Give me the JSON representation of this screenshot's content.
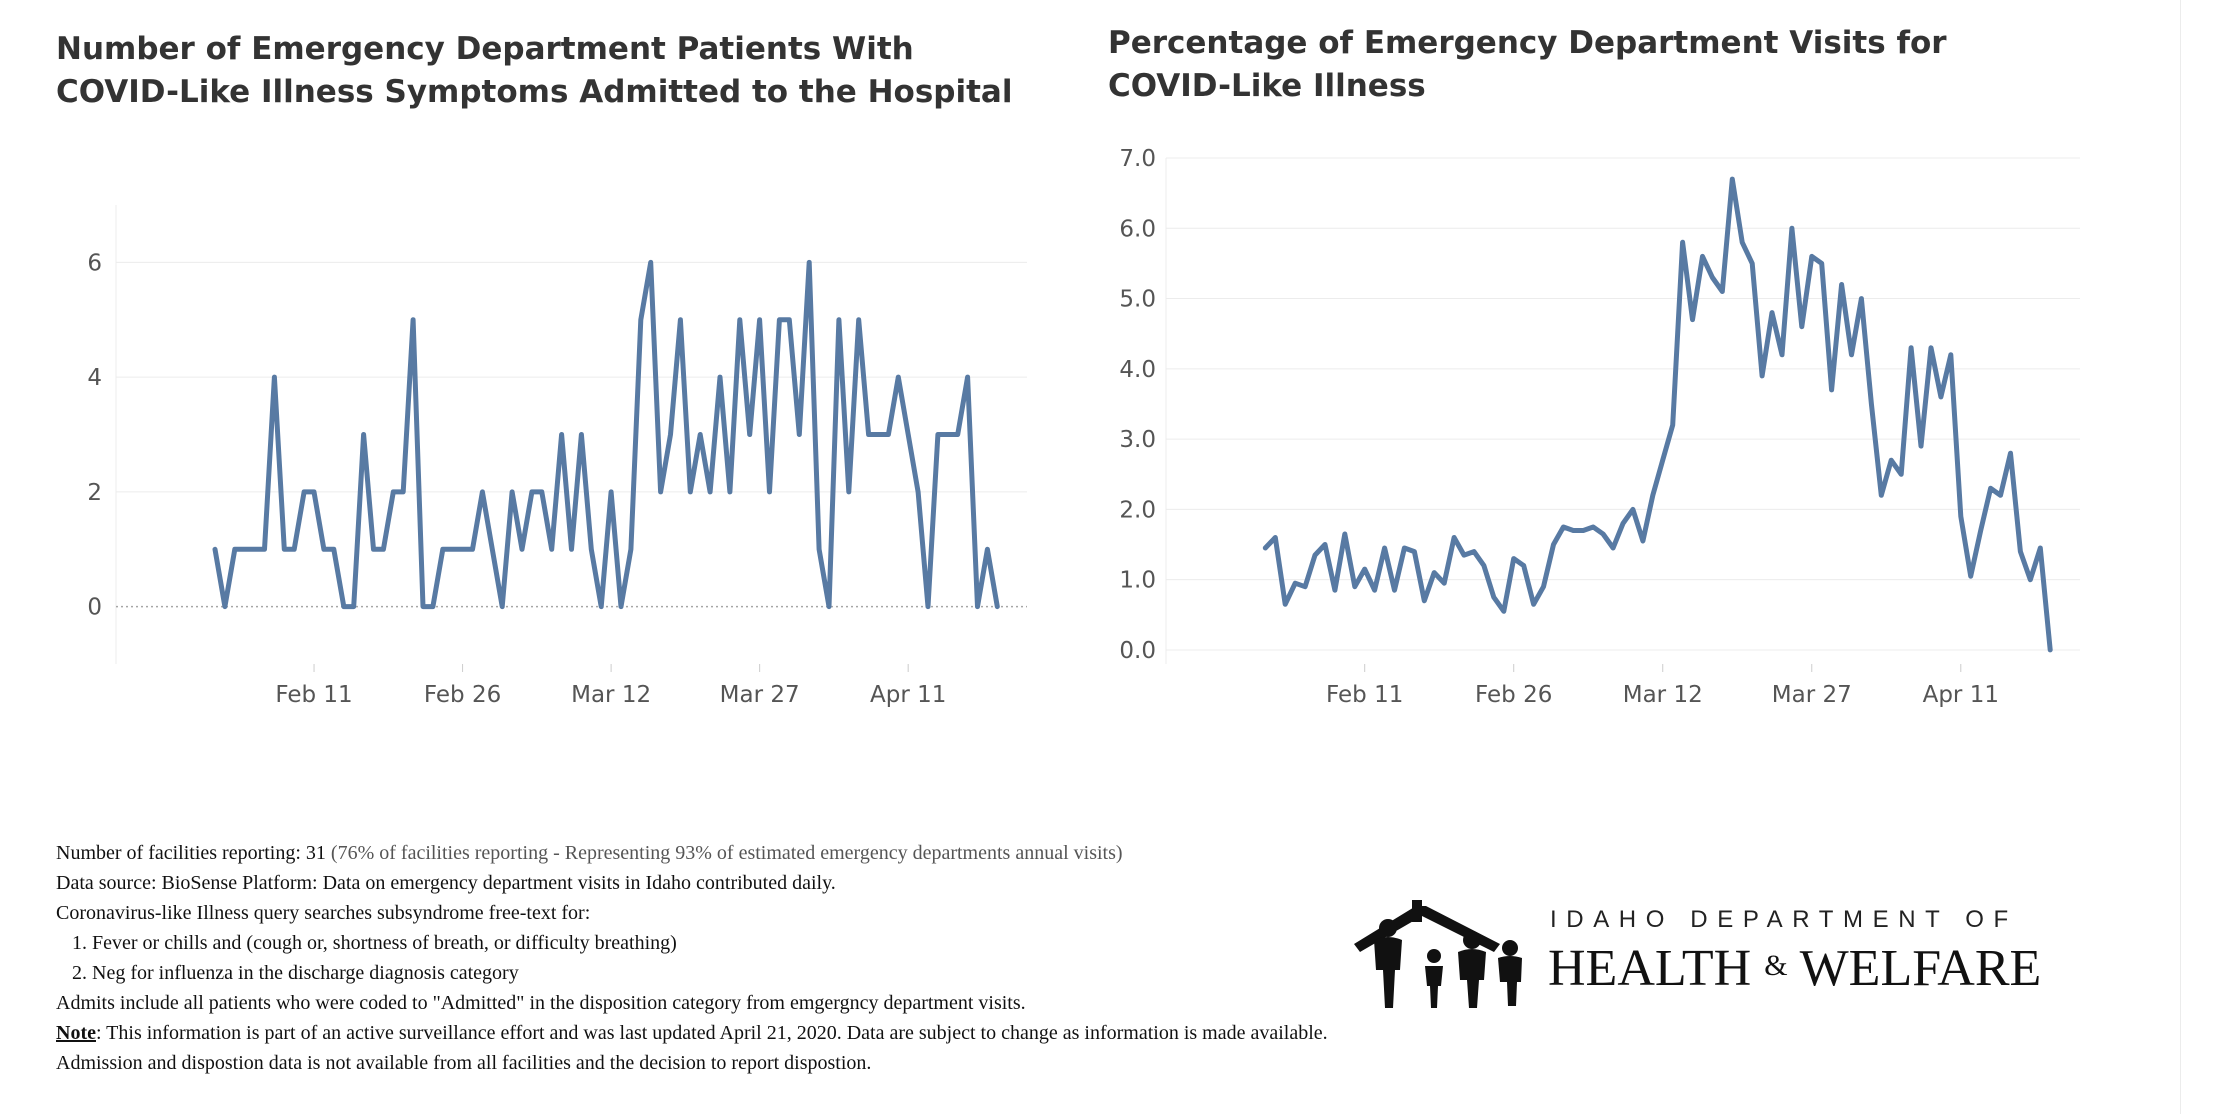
{
  "charts": {
    "left": {
      "title": "Number of Emergency Department Patients With COVID-Like Illness Symptoms Admitted to the Hospital"
    },
    "right": {
      "title": "Percentage of Emergency Department Visits for COVID-Like Illness"
    }
  },
  "chart_data": [
    {
      "type": "line",
      "title": "Number of Emergency Department Patients With COVID-Like Illness Symptoms Admitted to the Hospital",
      "xlabel": "",
      "ylabel": "",
      "x_start": "2020-02-01",
      "x_end": "2020-04-20",
      "xlim": [
        "2020-01-22",
        "2020-04-23"
      ],
      "ylim": [
        -1,
        7
      ],
      "x_ticks": [
        {
          "date": "2020-02-11",
          "label": "Feb 11"
        },
        {
          "date": "2020-02-26",
          "label": "Feb 26"
        },
        {
          "date": "2020-03-12",
          "label": "Mar 12"
        },
        {
          "date": "2020-03-27",
          "label": "Mar 27"
        },
        {
          "date": "2020-04-11",
          "label": "Apr 11"
        }
      ],
      "y_ticks": [
        {
          "value": 0,
          "label": "0"
        },
        {
          "value": 2,
          "label": "2"
        },
        {
          "value": 4,
          "label": "4"
        },
        {
          "value": 6,
          "label": "6"
        }
      ],
      "grid": true,
      "zero_line": "dotted",
      "line_color": "#587aa3",
      "values": [
        1,
        0,
        1,
        1,
        1,
        1,
        4,
        1,
        1,
        2,
        2,
        1,
        1,
        0,
        0,
        3,
        1,
        1,
        2,
        2,
        5,
        0,
        0,
        1,
        1,
        1,
        1,
        2,
        1,
        0,
        2,
        1,
        2,
        2,
        1,
        3,
        1,
        3,
        1,
        0,
        2,
        0,
        1,
        5,
        6,
        2,
        3,
        5,
        2,
        3,
        2,
        4,
        2,
        5,
        3,
        5,
        2,
        5,
        5,
        3,
        6,
        1,
        0,
        5,
        2,
        5,
        3,
        3,
        3,
        4,
        3,
        2,
        0,
        3,
        3,
        3,
        4,
        0,
        1,
        0
      ]
    },
    {
      "type": "line",
      "title": "Percentage of Emergency Department Visits for COVID-Like Illness",
      "xlabel": "",
      "ylabel": "",
      "x_start": "2020-02-01",
      "x_end": "2020-04-20",
      "xlim": [
        "2020-01-22",
        "2020-04-23"
      ],
      "ylim": [
        -0.2,
        7.0
      ],
      "x_ticks": [
        {
          "date": "2020-02-11",
          "label": "Feb 11"
        },
        {
          "date": "2020-02-26",
          "label": "Feb 26"
        },
        {
          "date": "2020-03-12",
          "label": "Mar 12"
        },
        {
          "date": "2020-03-27",
          "label": "Mar 27"
        },
        {
          "date": "2020-04-11",
          "label": "Apr 11"
        }
      ],
      "y_ticks": [
        {
          "value": 0,
          "label": "0.0"
        },
        {
          "value": 1,
          "label": "1.0"
        },
        {
          "value": 2,
          "label": "2.0"
        },
        {
          "value": 3,
          "label": "3.0"
        },
        {
          "value": 4,
          "label": "4.0"
        },
        {
          "value": 5,
          "label": "5.0"
        },
        {
          "value": 6,
          "label": "6.0"
        },
        {
          "value": 7,
          "label": "7.0"
        }
      ],
      "grid": true,
      "line_color": "#587aa3",
      "values": [
        1.45,
        1.6,
        0.65,
        0.95,
        0.9,
        1.35,
        1.5,
        0.85,
        1.65,
        0.9,
        1.15,
        0.85,
        1.45,
        0.85,
        1.45,
        1.4,
        0.7,
        1.1,
        0.95,
        1.6,
        1.35,
        1.4,
        1.2,
        0.75,
        0.55,
        1.3,
        1.2,
        0.65,
        0.9,
        1.5,
        1.75,
        1.7,
        1.7,
        1.75,
        1.65,
        1.45,
        1.8,
        2.0,
        1.55,
        2.2,
        2.7,
        3.2,
        5.8,
        4.7,
        5.6,
        5.3,
        5.1,
        6.7,
        5.8,
        5.5,
        3.9,
        4.8,
        4.2,
        6.0,
        4.6,
        5.6,
        5.5,
        3.7,
        5.2,
        4.2,
        5.0,
        3.5,
        2.2,
        2.7,
        2.5,
        4.3,
        2.9,
        4.3,
        3.6,
        4.2,
        1.9,
        1.05,
        1.7,
        2.3,
        2.2,
        2.8,
        1.4,
        1.0,
        1.45,
        0.0
      ]
    }
  ],
  "notes": {
    "facilities_label": "Number of facilities reporting: 31 ",
    "facilities_detail": "(76% of facilities reporting - Representing 93% of estimated emergency departments annual visits)",
    "data_source": "Data source: BioSense Platform: Data on emergency department visits in Idaho contributed daily.",
    "query_intro": "Coronavirus-like Illness query searches subsyndrome free-text for:",
    "criteria": [
      "1. Fever or chills and (cough or, shortness of breath, or difficulty breathing)",
      "2. Neg for influenza in the discharge diagnosis category"
    ],
    "admits": "Admits include all patients who were coded to \"Admitted\" in the disposition category from emgergncy department visits.",
    "note_label": "Note",
    "note_text": ": This information is part of an active surveillance effort and was last updated April 21, 2020. Data are subject to change as information is made available. Admission and dispostion data is not available from all facilities and the decision to report dispostion."
  },
  "logo": {
    "line1": "IDAHO DEPARTMENT OF",
    "line2a": "HEALTH",
    "amp": "&",
    "line2b": "WELFARE",
    "icon": "family-silhouette-house-icon"
  }
}
